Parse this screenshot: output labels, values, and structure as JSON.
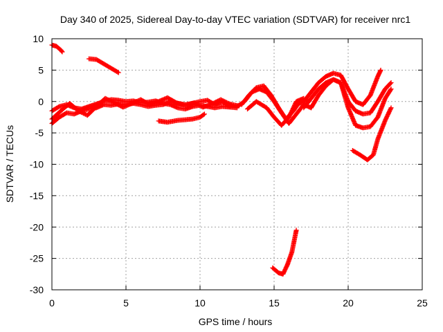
{
  "chart_data": {
    "type": "scatter",
    "title": "Day 340 of 2025, Sidereal Day-to-day VTEC variation (SDTVAR) for receiver nrc1",
    "xlabel": "GPS time / hours",
    "ylabel": "SDTVAR / TECUs",
    "xlim": [
      0,
      25
    ],
    "ylim": [
      -30,
      10
    ],
    "xticks": [
      0,
      5,
      10,
      15,
      20,
      25
    ],
    "yticks": [
      -30,
      -25,
      -20,
      -15,
      -10,
      -5,
      0,
      5,
      10
    ],
    "grid": true,
    "marker": "plus",
    "color": "#ff0000",
    "series": [
      {
        "name": "arc-early-high",
        "points": [
          [
            0,
            9
          ],
          [
            0.3,
            8.8
          ],
          [
            0.6,
            8.2
          ],
          [
            0.7,
            7.9
          ]
        ]
      },
      {
        "name": "arc-mid-high",
        "points": [
          [
            2.5,
            6.8
          ],
          [
            3,
            6.7
          ],
          [
            3.5,
            6
          ],
          [
            4,
            5.3
          ],
          [
            4.5,
            4.6
          ]
        ]
      },
      {
        "name": "band-main-1",
        "points": [
          [
            0,
            -1.5
          ],
          [
            0.5,
            -0.8
          ],
          [
            1,
            -0.5
          ],
          [
            1.5,
            -1
          ],
          [
            2,
            -1.2
          ],
          [
            2.5,
            -0.8
          ],
          [
            3,
            -0.4
          ],
          [
            3.5,
            0
          ],
          [
            4,
            0.3
          ],
          [
            4.5,
            0.2
          ],
          [
            5,
            0
          ],
          [
            5.5,
            0.1
          ],
          [
            6,
            -0.2
          ],
          [
            6.5,
            -0.1
          ],
          [
            7,
            0.1
          ],
          [
            7.5,
            -0.3
          ],
          [
            8,
            -0.5
          ],
          [
            8.5,
            -1
          ],
          [
            9,
            -1.2
          ],
          [
            9.5,
            -0.8
          ],
          [
            10,
            -0.6
          ],
          [
            10.5,
            -0.8
          ],
          [
            11,
            -1
          ],
          [
            11.5,
            -0.8
          ],
          [
            12,
            -0.9
          ],
          [
            12.5,
            -1
          ]
        ]
      },
      {
        "name": "band-main-2",
        "points": [
          [
            0,
            -3.5
          ],
          [
            0.5,
            -2.5
          ],
          [
            1,
            -1.8
          ],
          [
            1.5,
            -2
          ],
          [
            2,
            -1.5
          ],
          [
            2.5,
            -1.2
          ],
          [
            3,
            -1
          ],
          [
            3.5,
            -0.5
          ],
          [
            4,
            -0.6
          ],
          [
            4.5,
            -0.4
          ],
          [
            5,
            -0.5
          ],
          [
            5.5,
            -0.3
          ],
          [
            6,
            -0.5
          ],
          [
            6.5,
            -0.8
          ],
          [
            7,
            -0.6
          ],
          [
            7.5,
            -0.5
          ],
          [
            8,
            0
          ],
          [
            8.5,
            -0.3
          ],
          [
            9,
            -0.5
          ],
          [
            9.5,
            -0.3
          ],
          [
            10,
            0
          ],
          [
            10.5,
            0.2
          ],
          [
            11,
            -0.5
          ],
          [
            11.5,
            0
          ],
          [
            12,
            -0.8
          ]
        ]
      },
      {
        "name": "band-main-3",
        "points": [
          [
            0,
            -2.8
          ],
          [
            0.6,
            -1.5
          ],
          [
            1.2,
            -0.3
          ],
          [
            1.8,
            -1.5
          ],
          [
            2.4,
            -2.2
          ],
          [
            3,
            -0.8
          ],
          [
            3.6,
            0.5
          ],
          [
            4.2,
            -0.2
          ],
          [
            4.8,
            -0.9
          ],
          [
            5.4,
            -0.3
          ],
          [
            6,
            0.3
          ],
          [
            6.6,
            -0.5
          ],
          [
            7.2,
            0
          ],
          [
            7.8,
            0.6
          ],
          [
            8.4,
            -0.2
          ],
          [
            9,
            -0.6
          ],
          [
            9.6,
            -0.2
          ],
          [
            10.2,
            -0.9
          ],
          [
            10.8,
            -0.4
          ],
          [
            11.4,
            0.3
          ],
          [
            12,
            -0.4
          ],
          [
            12.6,
            -0.7
          ]
        ]
      },
      {
        "name": "arc-dip-8h",
        "points": [
          [
            7.2,
            -3.1
          ],
          [
            7.8,
            -3.3
          ],
          [
            8.5,
            -3
          ],
          [
            9,
            -2.9
          ],
          [
            9.5,
            -2.8
          ],
          [
            10,
            -2.5
          ],
          [
            10.3,
            -2
          ]
        ]
      },
      {
        "name": "arc-13-17h-a",
        "points": [
          [
            12.5,
            -0.8
          ],
          [
            13,
            0
          ],
          [
            13.5,
            1.5
          ],
          [
            14,
            2
          ],
          [
            14.5,
            1.5
          ],
          [
            15,
            0
          ],
          [
            15.5,
            -1.8
          ],
          [
            16,
            -3.5
          ],
          [
            16.5,
            -2
          ],
          [
            17,
            -0.5
          ],
          [
            17.5,
            -1
          ]
        ]
      },
      {
        "name": "arc-13-17h-b",
        "points": [
          [
            12.8,
            -0.5
          ],
          [
            13.3,
            1
          ],
          [
            13.8,
            2.2
          ],
          [
            14.3,
            2.5
          ],
          [
            14.8,
            1
          ],
          [
            15.3,
            -1
          ],
          [
            15.8,
            -2.8
          ],
          [
            16.3,
            -1.5
          ],
          [
            16.8,
            0.2
          ],
          [
            17.3,
            0
          ]
        ]
      },
      {
        "name": "arc-13-17h-c",
        "points": [
          [
            13.2,
            -1.2
          ],
          [
            13.8,
            0
          ],
          [
            14.5,
            -1
          ],
          [
            15,
            -2.5
          ],
          [
            15.5,
            -3.8
          ],
          [
            16,
            -2.5
          ],
          [
            16.5,
            0
          ],
          [
            17,
            0.5
          ]
        ]
      },
      {
        "name": "arc-16-23h-a",
        "points": [
          [
            16.5,
            -0.5
          ],
          [
            17,
            0
          ],
          [
            17.5,
            1.5
          ],
          [
            18,
            3
          ],
          [
            18.5,
            4
          ],
          [
            19,
            4.5
          ],
          [
            19.5,
            4.2
          ],
          [
            20,
            2
          ],
          [
            20.5,
            0
          ],
          [
            21,
            -0.5
          ],
          [
            21.5,
            1
          ],
          [
            22,
            4
          ],
          [
            22.2,
            5
          ]
        ]
      },
      {
        "name": "arc-16-23h-b",
        "points": [
          [
            17,
            -1
          ],
          [
            17.5,
            0.5
          ],
          [
            18,
            2
          ],
          [
            18.5,
            3
          ],
          [
            19,
            3.5
          ],
          [
            19.5,
            3
          ],
          [
            20,
            0
          ],
          [
            20.5,
            -1.5
          ],
          [
            21,
            -2
          ],
          [
            21.5,
            -1.8
          ],
          [
            22,
            0
          ],
          [
            22.5,
            2
          ],
          [
            22.9,
            3
          ]
        ]
      },
      {
        "name": "arc-16-23h-c",
        "points": [
          [
            17.5,
            -1
          ],
          [
            18,
            1
          ],
          [
            18.5,
            2.5
          ],
          [
            19,
            3.5
          ],
          [
            19.5,
            3
          ],
          [
            20,
            -1
          ],
          [
            20.5,
            -3.8
          ],
          [
            21,
            -4.2
          ],
          [
            21.5,
            -4
          ],
          [
            22,
            -2.5
          ],
          [
            22.5,
            0.5
          ],
          [
            22.9,
            2
          ]
        ]
      },
      {
        "name": "arc-20-23h-low",
        "points": [
          [
            20.3,
            -7.8
          ],
          [
            20.8,
            -8.5
          ],
          [
            21.3,
            -9.3
          ],
          [
            21.7,
            -8.5
          ],
          [
            22,
            -6
          ],
          [
            22.5,
            -3
          ],
          [
            22.9,
            -1
          ]
        ]
      },
      {
        "name": "arc-15-17h-deep",
        "points": [
          [
            14.9,
            -26.5
          ],
          [
            15.3,
            -27.3
          ],
          [
            15.6,
            -27.5
          ],
          [
            15.9,
            -26
          ],
          [
            16.2,
            -24
          ],
          [
            16.5,
            -20.5
          ]
        ]
      }
    ]
  }
}
